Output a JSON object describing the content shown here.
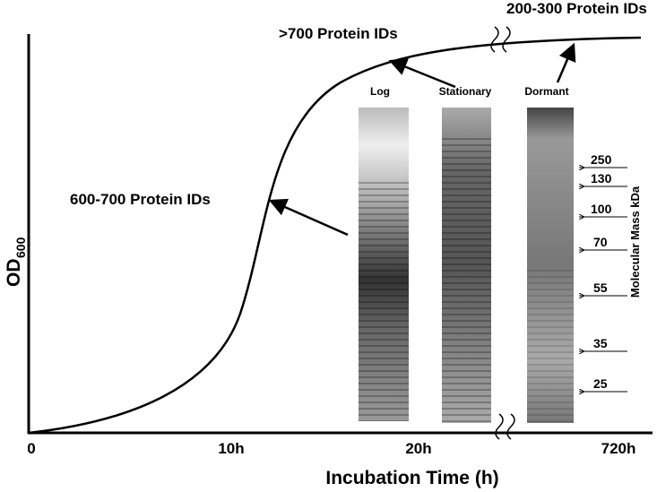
{
  "axes": {
    "y_label": "OD",
    "y_label_sub": "600",
    "x_label": "Incubation Time (h)",
    "x_ticks": [
      "0",
      "10h",
      "20h",
      "720h"
    ]
  },
  "annotations": [
    "600-700 Protein IDs",
    ">700 Protein IDs",
    "200-300 Protein IDs"
  ],
  "gel": {
    "lanes": [
      "Log",
      "Stationary",
      "Dormant"
    ],
    "markers": [
      "250",
      "130",
      "100",
      "70",
      "55",
      "35",
      "25"
    ],
    "marker_title": "Molecular Mass kDa"
  }
}
